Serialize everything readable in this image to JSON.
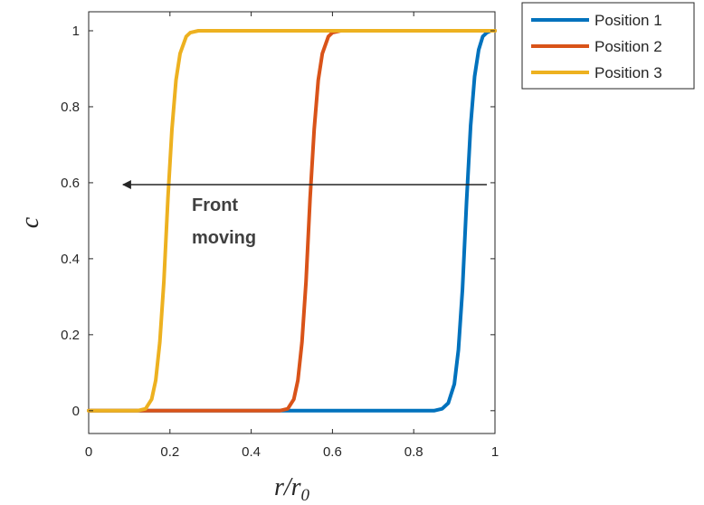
{
  "chart_data": {
    "type": "line",
    "xlabel": "r/r",
    "xlabel_sub": "0",
    "ylabel": "c",
    "xlim": [
      0,
      1
    ],
    "ylim": [
      -0.06,
      1.05
    ],
    "xticks": [
      "0",
      "0.2",
      "0.4",
      "0.6",
      "0.8",
      "1"
    ],
    "yticks": [
      "0",
      "0.2",
      "0.4",
      "0.6",
      "0.8",
      "1"
    ],
    "grid": false,
    "legend_position": "outside-top-right",
    "annotation": {
      "lines": [
        "Front",
        "moving"
      ],
      "arrow_from": [
        0.98,
        0.595
      ],
      "arrow_to": [
        0.08,
        0.595
      ]
    },
    "series": [
      {
        "name": "Position 1",
        "color": "#0072BD",
        "x": [
          0,
          0.85,
          0.87,
          0.885,
          0.9,
          0.91,
          0.92,
          0.93,
          0.94,
          0.95,
          0.96,
          0.97,
          0.98,
          0.99,
          1.0
        ],
        "y": [
          0,
          0,
          0.005,
          0.02,
          0.07,
          0.16,
          0.32,
          0.55,
          0.75,
          0.88,
          0.95,
          0.985,
          0.995,
          1.0,
          1.0
        ]
      },
      {
        "name": "Position 2",
        "color": "#D95319",
        "x": [
          0,
          0.47,
          0.49,
          0.505,
          0.515,
          0.525,
          0.535,
          0.545,
          0.555,
          0.565,
          0.575,
          0.59,
          0.6,
          0.62,
          1.0
        ],
        "y": [
          0,
          0,
          0.005,
          0.03,
          0.08,
          0.18,
          0.34,
          0.56,
          0.74,
          0.87,
          0.94,
          0.985,
          0.995,
          1.0,
          1.0
        ]
      },
      {
        "name": "Position 3",
        "color": "#EDB120",
        "x": [
          0,
          0.12,
          0.14,
          0.155,
          0.165,
          0.175,
          0.185,
          0.195,
          0.205,
          0.215,
          0.225,
          0.24,
          0.25,
          0.27,
          1.0
        ],
        "y": [
          0,
          0,
          0.005,
          0.03,
          0.08,
          0.18,
          0.34,
          0.56,
          0.74,
          0.87,
          0.94,
          0.985,
          0.995,
          1.0,
          1.0
        ]
      }
    ]
  }
}
